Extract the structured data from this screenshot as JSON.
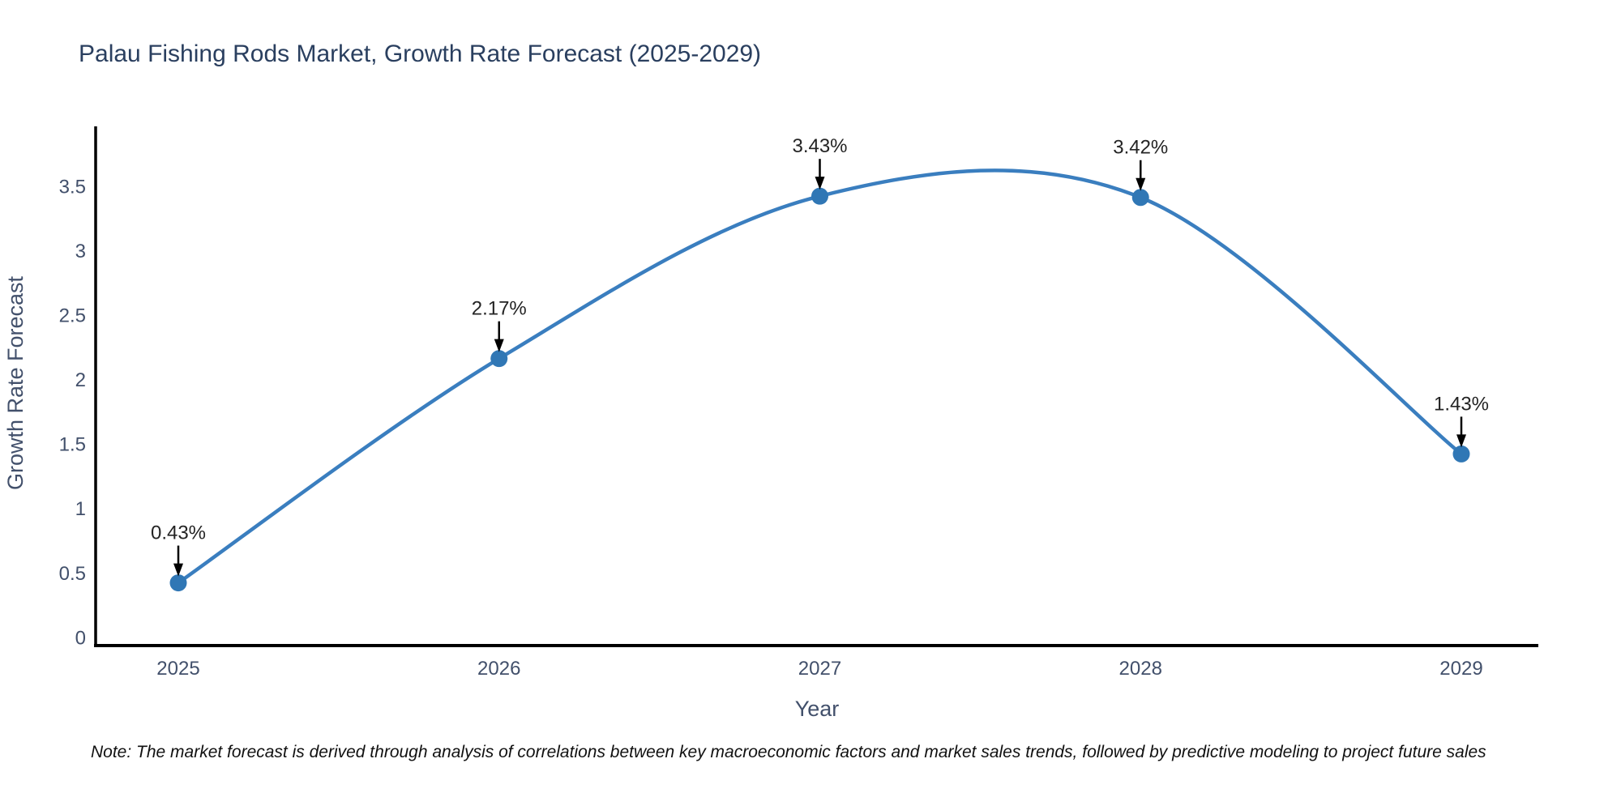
{
  "header": {
    "title": "Palau Fishing Rods Market, Growth Rate Forecast (2025-2029)"
  },
  "footnote": {
    "text": "Note: The market forecast is derived through analysis of correlations between key macroeconomic factors and market sales trends, followed by predictive modeling to project future sales"
  },
  "chart_data": {
    "type": "line",
    "title": "Palau Fishing Rods Market, Growth Rate Forecast (2025-2029)",
    "x": [
      "2025",
      "2026",
      "2027",
      "2028",
      "2029"
    ],
    "series": [
      {
        "name": "Growth Rate Forecast",
        "values": [
          0.43,
          2.17,
          3.43,
          3.42,
          1.43
        ]
      }
    ],
    "point_labels": [
      "0.43%",
      "2.17%",
      "3.43%",
      "3.42%",
      "1.43%"
    ],
    "xlabel": "Year",
    "ylabel": "Growth Rate Forecast",
    "ylim": [
      0,
      3.75
    ],
    "yticks": [
      "0",
      "0.5",
      "1",
      "1.5",
      "2",
      "2.5",
      "3",
      "3.5"
    ],
    "grid": false,
    "legend_position": "none",
    "line_style": "spline",
    "colors": {
      "line": "#3a7ebf",
      "marker": "#3077b5",
      "axis": "#000000",
      "tick_label": "#42506b",
      "axis_label": "#42506b",
      "title": "#2a3f5f",
      "annotation": "#242424"
    }
  }
}
